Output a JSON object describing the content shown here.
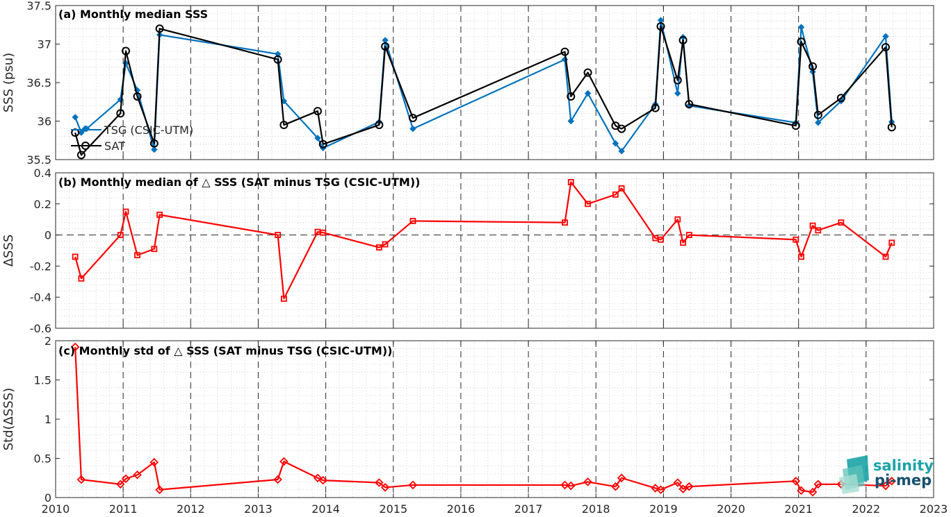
{
  "chart_data": [
    {
      "type": "line",
      "title": "(a) Monthly median SSS",
      "ylabel": "SSS (psu)",
      "xlim": [
        2010,
        2023
      ],
      "ylim": [
        35.5,
        37.5
      ],
      "yticks": [
        35.5,
        36,
        36.5,
        37,
        37.5
      ],
      "ytick_labels": [
        "35.5",
        "36",
        "36.5",
        "37",
        "37.5"
      ],
      "grid": "dotted minor",
      "legend_position": "left",
      "series": [
        {
          "name": "TSG (CSIC-UTM)",
          "color": "#0072bd",
          "marker": "diamond",
          "x": [
            2010.29,
            2010.38,
            2010.46,
            2010.96,
            2011.04,
            2011.21,
            2011.46,
            2011.54,
            2013.29,
            2013.38,
            2013.88,
            2013.96,
            2014.79,
            2014.88,
            2015.29,
            2017.54,
            2017.63,
            2017.88,
            2018.29,
            2018.38,
            2018.88,
            2018.96,
            2019.21,
            2019.29,
            2019.38,
            2020.96,
            2021.04,
            2021.21,
            2021.29,
            2021.63,
            2022.29,
            2022.38
          ],
          "values": [
            36.05,
            35.85,
            35.9,
            36.28,
            36.75,
            36.4,
            35.63,
            37.12,
            36.87,
            36.26,
            35.78,
            35.65,
            35.99,
            37.05,
            35.9,
            36.8,
            36.0,
            36.36,
            35.71,
            35.61,
            36.22,
            37.31,
            36.36,
            37.09,
            36.2,
            35.98,
            37.22,
            36.64,
            35.98,
            36.26,
            37.1,
            35.99
          ]
        },
        {
          "name": "SAT",
          "color": "#000000",
          "marker": "circle",
          "x": [
            2010.29,
            2010.38,
            2010.96,
            2011.04,
            2011.21,
            2011.46,
            2011.54,
            2013.29,
            2013.38,
            2013.88,
            2013.96,
            2014.79,
            2014.88,
            2015.29,
            2017.54,
            2017.63,
            2017.88,
            2018.29,
            2018.38,
            2018.88,
            2018.96,
            2019.21,
            2019.29,
            2019.38,
            2020.96,
            2021.04,
            2021.21,
            2021.29,
            2021.63,
            2022.29,
            2022.38
          ],
          "values": [
            35.85,
            35.56,
            36.1,
            36.91,
            36.32,
            35.71,
            37.2,
            36.8,
            35.95,
            36.13,
            35.7,
            35.95,
            36.97,
            36.04,
            36.9,
            36.32,
            36.63,
            35.94,
            35.9,
            36.17,
            37.23,
            36.53,
            37.05,
            36.22,
            35.94,
            37.03,
            36.71,
            36.08,
            36.3,
            36.96,
            35.92
          ]
        }
      ]
    },
    {
      "type": "line",
      "title": "(b) Monthly median of △ SSS (SAT minus TSG (CSIC-UTM))",
      "ylabel": "ΔSSS",
      "xlim": [
        2010,
        2023
      ],
      "ylim": [
        -0.6,
        0.4
      ],
      "yticks": [
        -0.6,
        -0.4,
        -0.2,
        0,
        0.2,
        0.4
      ],
      "ytick_labels": [
        "-0.6",
        "-0.4",
        "-0.2",
        "0",
        "0.2",
        "0.4"
      ],
      "reference_line": 0,
      "series": [
        {
          "color": "#ff0000",
          "marker": "square",
          "x": [
            2010.29,
            2010.38,
            2010.96,
            2011.04,
            2011.21,
            2011.46,
            2011.54,
            2013.29,
            2013.38,
            2013.88,
            2013.96,
            2014.79,
            2014.88,
            2015.29,
            2017.54,
            2017.63,
            2017.88,
            2018.29,
            2018.38,
            2018.88,
            2018.96,
            2019.21,
            2019.29,
            2019.38,
            2020.96,
            2021.04,
            2021.21,
            2021.29,
            2021.63,
            2022.29,
            2022.38
          ],
          "values": [
            -0.14,
            -0.28,
            0.0,
            0.15,
            -0.13,
            -0.09,
            0.13,
            0.0,
            -0.41,
            0.02,
            0.015,
            -0.08,
            -0.06,
            0.09,
            0.08,
            0.34,
            0.2,
            0.26,
            0.3,
            -0.02,
            -0.03,
            0.1,
            -0.05,
            0.0,
            -0.03,
            -0.14,
            0.06,
            0.03,
            0.08,
            -0.14,
            -0.05
          ]
        }
      ]
    },
    {
      "type": "line",
      "title": "(c) Monthly std of △ SSS (SAT minus TSG (CSIC-UTM))",
      "ylabel": "Std(ΔSSS)",
      "xlim": [
        2010,
        2023
      ],
      "ylim": [
        0,
        2
      ],
      "yticks": [
        0,
        0.5,
        1,
        1.5,
        2
      ],
      "ytick_labels": [
        "0",
        "0.5",
        "1",
        "1.5",
        "2"
      ],
      "xticks": [
        2010,
        2011,
        2012,
        2013,
        2014,
        2015,
        2016,
        2017,
        2018,
        2019,
        2020,
        2021,
        2022,
        2023
      ],
      "xtick_labels": [
        "2010",
        "2011",
        "2012",
        "2013",
        "2014",
        "2015",
        "2016",
        "2017",
        "2018",
        "2019",
        "2020",
        "2021",
        "2022",
        "2023"
      ],
      "series": [
        {
          "color": "#ff0000",
          "marker": "diamond",
          "x": [
            2010.29,
            2010.38,
            2010.96,
            2011.04,
            2011.21,
            2011.46,
            2011.54,
            2013.29,
            2013.38,
            2013.88,
            2013.96,
            2014.79,
            2014.88,
            2015.29,
            2017.54,
            2017.63,
            2017.88,
            2018.29,
            2018.38,
            2018.88,
            2018.96,
            2019.21,
            2019.29,
            2019.38,
            2020.96,
            2021.04,
            2021.21,
            2021.29,
            2021.63,
            2022.29,
            2022.38
          ],
          "values": [
            1.92,
            0.23,
            0.17,
            0.24,
            0.29,
            0.45,
            0.1,
            0.23,
            0.46,
            0.25,
            0.22,
            0.19,
            0.13,
            0.16,
            0.16,
            0.15,
            0.2,
            0.14,
            0.25,
            0.12,
            0.1,
            0.19,
            0.11,
            0.14,
            0.21,
            0.09,
            0.07,
            0.17,
            0.17,
            0.15,
            0.21
          ]
        }
      ]
    }
  ],
  "logo": {
    "line1": "salinity",
    "line2": "pi-mep"
  }
}
